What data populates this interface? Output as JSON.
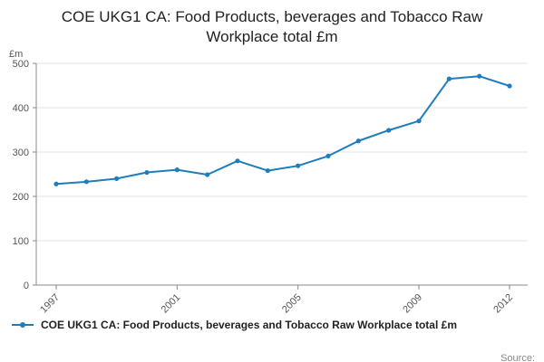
{
  "chart": {
    "title": "COE UKG1 CA: Food Products, beverages and Tobacco Raw Workplace total £m"
  },
  "footer": {
    "source": "Source:"
  },
  "chart_data": {
    "type": "line",
    "title": "COE UKG1 CA: Food Products, beverages and Tobacco Raw Workplace total £m",
    "xlabel": "",
    "ylabel": "£m",
    "x": [
      1997,
      1998,
      1999,
      2000,
      2001,
      2002,
      2003,
      2004,
      2005,
      2006,
      2007,
      2008,
      2009,
      2010,
      2011,
      2012
    ],
    "series": [
      {
        "name": "COE UKG1 CA: Food Products, beverages and Tobacco Raw Workplace total £m",
        "values": [
          228,
          233,
          240,
          254,
          260,
          249,
          280,
          258,
          269,
          291,
          325,
          349,
          370,
          465,
          471,
          449
        ]
      }
    ],
    "ylim": [
      0,
      500
    ],
    "y_ticks": [
      0,
      100,
      200,
      300,
      400,
      500
    ],
    "x_tick_labels": [
      1997,
      2001,
      2005,
      2009,
      2012
    ],
    "line_color": "#1d7dbd",
    "marker": "circle",
    "grid": true,
    "legend_position": "bottom"
  }
}
